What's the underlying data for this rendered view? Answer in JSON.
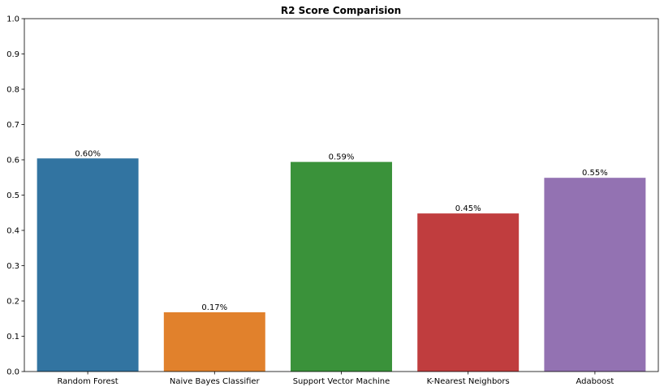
{
  "chart_data": {
    "type": "bar",
    "title": "R2 Score Comparision",
    "xlabel": "",
    "ylabel": "",
    "categories": [
      "Random Forest",
      "Naive Bayes Classifier",
      "Support Vector Machine",
      "K-Nearest Neighbors",
      "Adaboost"
    ],
    "values": [
      0.604,
      0.168,
      0.594,
      0.448,
      0.549
    ],
    "data_labels": [
      "0.60%",
      "0.17%",
      "0.59%",
      "0.45%",
      "0.55%"
    ],
    "colors": [
      "#3274a1",
      "#e1812c",
      "#3a923a",
      "#c03d3e",
      "#9372b2"
    ],
    "ylim": [
      0,
      1.0
    ],
    "yticks": [
      "0.0",
      "0.1",
      "0.2",
      "0.3",
      "0.4",
      "0.5",
      "0.6",
      "0.7",
      "0.8",
      "0.9",
      "1.0"
    ],
    "grid": false,
    "legend": "none"
  }
}
